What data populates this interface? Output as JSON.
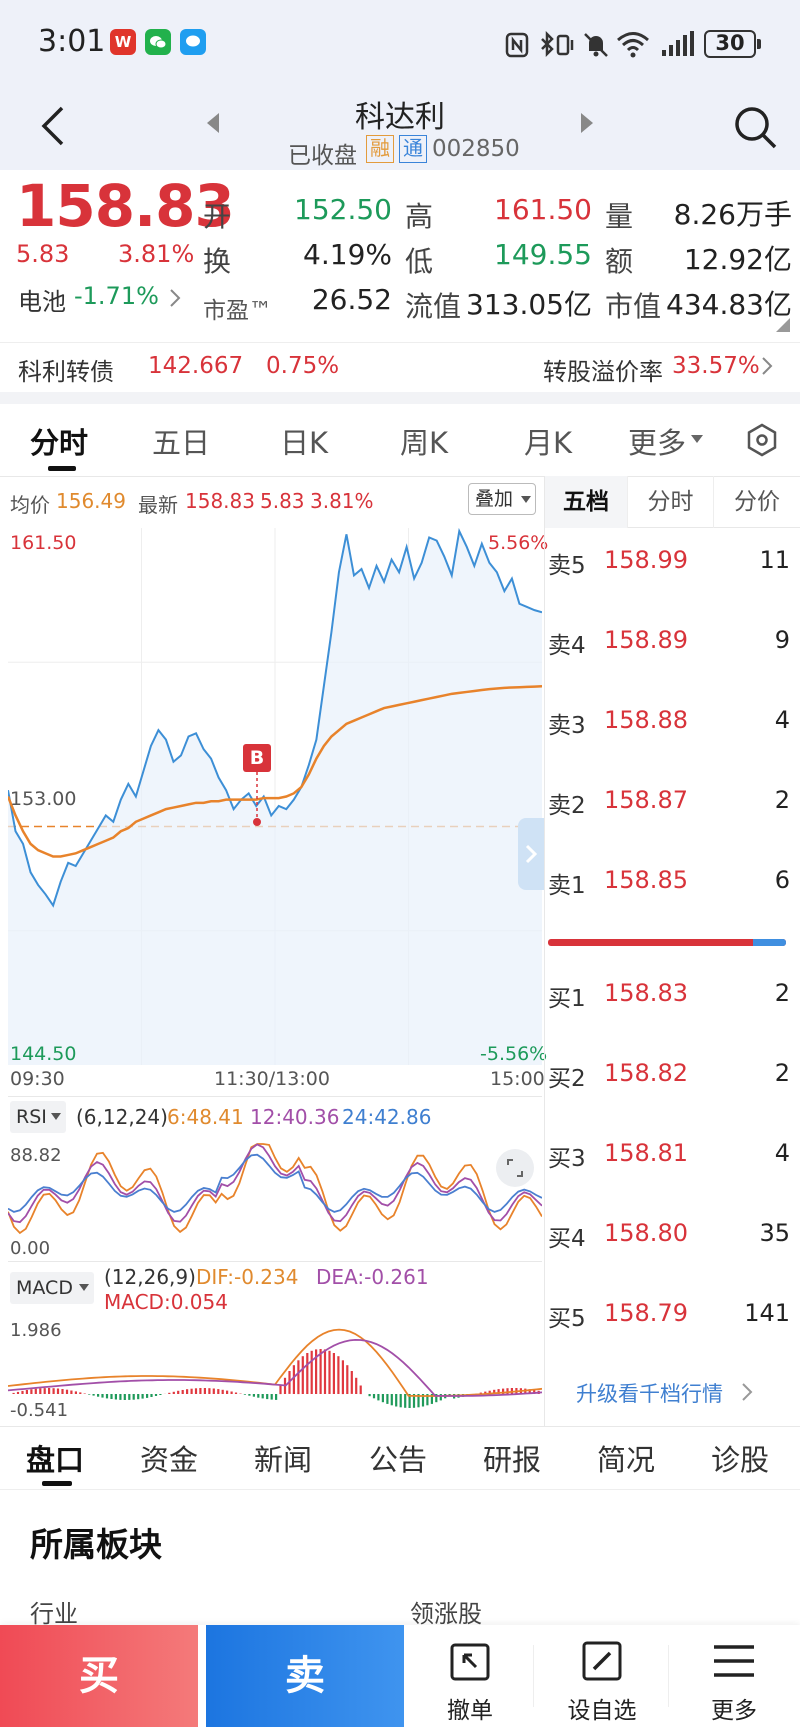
{
  "status": {
    "time": "3:01",
    "battery": "30",
    "apps": [
      {
        "name": "wps-icon",
        "letter": "W",
        "color": "#e0352b"
      },
      {
        "name": "wechat-icon",
        "letter": "●",
        "color": "#22b14c"
      },
      {
        "name": "message-icon",
        "letter": "●",
        "color": "#1f9ef0"
      }
    ]
  },
  "header": {
    "title": "科达利",
    "status": "已收盘",
    "badge_rong": "融",
    "badge_tong": "通",
    "code": "002850"
  },
  "quote": {
    "price": "158.83",
    "change": "5.83",
    "change_pct": "3.81%",
    "sector_name": "电池",
    "sector_pct": "-1.71%",
    "open_label": "开",
    "open": "152.50",
    "high_label": "高",
    "high": "161.50",
    "volume_label": "量",
    "volume": "8.26万手",
    "turnover_label": "换",
    "turnover": "4.19%",
    "low_label": "低",
    "low": "149.55",
    "amount_label": "额",
    "amount": "12.92亿",
    "pe_label": "市盈™",
    "pe": "26.52",
    "float_label": "流值",
    "float_cap": "313.05亿",
    "mcap_label": "市值",
    "mcap": "434.83亿"
  },
  "bond": {
    "name": "科利转债",
    "price": "142.667",
    "pct": "0.75%",
    "premium_label": "转股溢价率",
    "premium": "33.57%"
  },
  "ktabs": [
    "分时",
    "五日",
    "日K",
    "周K",
    "月K",
    "更多"
  ],
  "chart_info": {
    "avg_label": "均价",
    "avg": "156.49",
    "last_label": "最新",
    "last": "158.83",
    "last_chg": "5.83",
    "last_pct": "3.81%",
    "overlay": "叠加"
  },
  "chart_data": {
    "type": "line",
    "y_max_label": "161.50",
    "y_mid_label": "153.00",
    "y_min_label": "144.50",
    "pct_max_label": "5.56%",
    "pct_min_label": "-5.56%",
    "ylim": [
      144.5,
      161.5
    ],
    "prev_close": 153.0,
    "x_labels": [
      "09:30",
      "11:30/13:00",
      "15:00"
    ],
    "buy_marker": "B",
    "series": [
      {
        "name": "price",
        "color": "#3d8fd6",
        "values": [
          153.2,
          151.9,
          151.5,
          150.6,
          150.2,
          149.9,
          149.55,
          150.3,
          150.9,
          150.8,
          151.2,
          151.6,
          152.0,
          152.4,
          152.2,
          152.9,
          153.4,
          153.0,
          153.8,
          154.6,
          155.1,
          154.8,
          154.1,
          154.3,
          154.9,
          155.0,
          154.5,
          154.2,
          153.6,
          153.2,
          152.6,
          152.9,
          153.1,
          152.7,
          153.0,
          152.4,
          152.7,
          152.6,
          152.9,
          153.3,
          154.0,
          154.8,
          156.5,
          158.2,
          160.1,
          161.3,
          160.0,
          160.2,
          159.6,
          160.3,
          159.8,
          160.5,
          160.1,
          160.9,
          159.9,
          160.4,
          161.2,
          161.1,
          160.6,
          160.0,
          161.4,
          160.9,
          160.3,
          161.0,
          160.4,
          160.1,
          159.5,
          159.9,
          159.1,
          159.0,
          158.9,
          158.83
        ]
      },
      {
        "name": "avg",
        "color": "#e8832b",
        "values": [
          153.0,
          152.4,
          151.9,
          151.5,
          151.3,
          151.2,
          151.1,
          151.1,
          151.15,
          151.2,
          151.3,
          151.4,
          151.5,
          151.6,
          151.7,
          151.9,
          152.0,
          152.2,
          152.3,
          152.4,
          152.5,
          152.6,
          152.65,
          152.7,
          152.75,
          152.8,
          152.8,
          152.85,
          152.85,
          152.9,
          152.9,
          152.9,
          152.9,
          152.9,
          152.95,
          152.95,
          152.95,
          153.0,
          153.1,
          153.3,
          153.7,
          154.2,
          154.6,
          154.9,
          155.1,
          155.3,
          155.4,
          155.5,
          155.6,
          155.7,
          155.8,
          155.85,
          155.9,
          155.95,
          156.0,
          156.05,
          156.1,
          156.15,
          156.2,
          156.25,
          156.28,
          156.31,
          156.34,
          156.37,
          156.4,
          156.42,
          156.44,
          156.45,
          156.46,
          156.47,
          156.48,
          156.49
        ]
      }
    ]
  },
  "rsi": {
    "label": "RSI",
    "params": "(6,12,24)",
    "rsi6": "6:48.41",
    "rsi12": "12:40.36",
    "rsi24": "24:42.86",
    "top": "88.82",
    "bottom": "0.00"
  },
  "macd": {
    "label": "MACD",
    "params": "(12,26,9)",
    "dif": "DIF:-0.234",
    "dea": "DEA:-0.261",
    "macd": "MACD:0.054",
    "top": "1.986",
    "bottom": "-0.541"
  },
  "orderbook": {
    "tabs": [
      "五档",
      "分时",
      "分价"
    ],
    "asks": [
      {
        "label": "卖5",
        "price": "158.99",
        "vol": "11"
      },
      {
        "label": "卖4",
        "price": "158.89",
        "vol": "9"
      },
      {
        "label": "卖3",
        "price": "158.88",
        "vol": "4"
      },
      {
        "label": "卖2",
        "price": "158.87",
        "vol": "2"
      },
      {
        "label": "卖1",
        "price": "158.85",
        "vol": "6"
      }
    ],
    "bids": [
      {
        "label": "买1",
        "price": "158.83",
        "vol": "2"
      },
      {
        "label": "买2",
        "price": "158.82",
        "vol": "2"
      },
      {
        "label": "买3",
        "price": "158.81",
        "vol": "4"
      },
      {
        "label": "买4",
        "price": "158.80",
        "vol": "35"
      },
      {
        "label": "买5",
        "price": "158.79",
        "vol": "141"
      }
    ],
    "buy_ratio": 0.86,
    "upgrade": "升级看千档行情"
  },
  "btabs": [
    "盘口",
    "资金",
    "新闻",
    "公告",
    "研报",
    "简况",
    "诊股"
  ],
  "section": {
    "title": "所属板块",
    "col1": "行业",
    "col2": "领涨股"
  },
  "bottom": {
    "buy": "买",
    "sell": "卖",
    "cancel": "撤单",
    "watch": "设自选",
    "more": "更多"
  }
}
